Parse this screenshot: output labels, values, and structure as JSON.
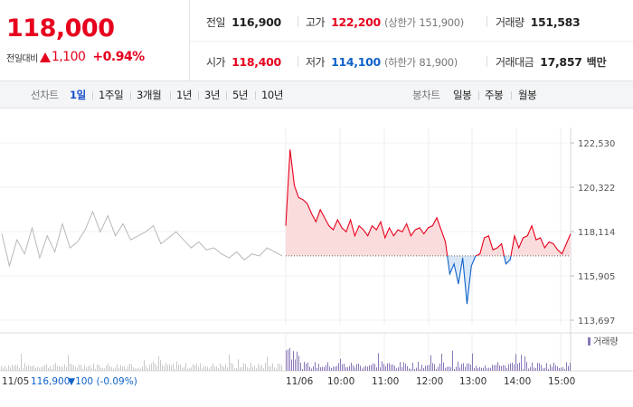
{
  "quote": {
    "price": "118,000",
    "change_label": "전일대비",
    "change_value": "1,100",
    "change_pct": "+0.94%",
    "prev_close_label": "전일",
    "prev_close": "116,900",
    "high_label": "고가",
    "high": "122,200",
    "upper_limit": "(상한가 151,900)",
    "volume_label": "거래량",
    "volume": "151,583",
    "open_label": "시가",
    "open": "118,400",
    "low_label": "저가",
    "low": "114,100",
    "lower_limit": "(하한가 81,900)",
    "amount_label": "거래대금",
    "amount": "17,857",
    "amount_unit": "백만"
  },
  "colors": {
    "up": "#e7001d",
    "down": "#1062c9",
    "prev": "#b8b8b8",
    "volume": "#8a78b9"
  },
  "toolbar": {
    "line_label": "선차트",
    "periods": [
      "1일",
      "1주일",
      "3개월",
      "1년",
      "3년",
      "5년",
      "10년"
    ],
    "active_period": "1일",
    "candle_label": "봉차트",
    "candles": [
      "일봉",
      "주봉",
      "월봉"
    ]
  },
  "chart_data": {
    "type": "line",
    "y_ticks": [
      "122,530",
      "120,322",
      "118,114",
      "115,905",
      "113,697"
    ],
    "ylim": [
      113697,
      122530
    ],
    "reference_price": 116900,
    "volume_legend": "거래량",
    "prev_day": {
      "date_label": "11/05",
      "close_label": "116,900",
      "change_label": "▼100 (-0.09%)",
      "values": [
        118000,
        116400,
        117700,
        117000,
        118300,
        116800,
        117900,
        117100,
        118500,
        117300,
        117600,
        118200,
        119100,
        118100,
        118900,
        117900,
        118500,
        117700,
        117900,
        118100,
        118400,
        117500,
        117800,
        118100,
        117700,
        117300,
        117600,
        117200,
        117300,
        117000,
        116800,
        117100,
        116700,
        117000,
        116900,
        117300,
        117100,
        116900
      ]
    },
    "today": {
      "date_label": "11/06",
      "times": [
        "10:00",
        "11:00",
        "12:00",
        "13:00",
        "14:00",
        "15:00"
      ],
      "values": [
        118400,
        122200,
        120400,
        119800,
        119700,
        119500,
        119000,
        118600,
        119200,
        118800,
        118400,
        118200,
        118700,
        118300,
        118100,
        118700,
        117900,
        118400,
        118200,
        117900,
        118400,
        118200,
        118600,
        117800,
        118300,
        117900,
        118200,
        118100,
        118500,
        117900,
        118200,
        118300,
        118000,
        118300,
        118400,
        118800,
        118200,
        117600,
        116000,
        116500,
        115500,
        116800,
        114500,
        116400,
        116900,
        117000,
        117800,
        117900,
        117200,
        117300,
        117500,
        116500,
        116700,
        117900,
        117300,
        117800,
        117900,
        118400,
        117700,
        117800,
        117300,
        117600,
        117500,
        117200,
        117000,
        117500,
        118000
      ]
    }
  }
}
